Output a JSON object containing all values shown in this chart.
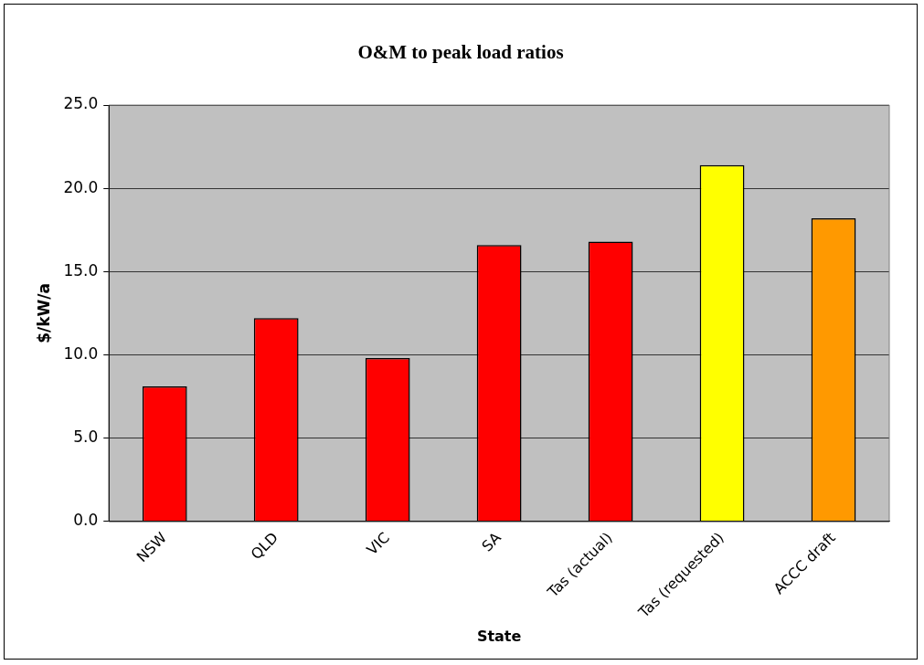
{
  "chart_data": {
    "type": "bar",
    "title": "O&M to peak load ratios",
    "xlabel": "State",
    "ylabel": "$/kW/a",
    "categories": [
      "NSW",
      "QLD",
      "VIC",
      "SA",
      "Tas (actual)",
      "Tas (requested)",
      "ACCC draft"
    ],
    "values": [
      8.1,
      12.2,
      9.8,
      16.6,
      16.8,
      21.4,
      18.2
    ],
    "colors": [
      "#ff0000",
      "#ff0000",
      "#ff0000",
      "#ff0000",
      "#ff0000",
      "#ffff00",
      "#ff9900"
    ],
    "ylim": [
      0,
      25
    ],
    "yticks": [
      {
        "value": 0,
        "label": "0.0"
      },
      {
        "value": 5,
        "label": "5.0"
      },
      {
        "value": 10,
        "label": "10.0"
      },
      {
        "value": 15,
        "label": "15.0"
      },
      {
        "value": 20,
        "label": "20.0"
      },
      {
        "value": 25,
        "label": "25.0"
      }
    ],
    "grid": "y",
    "legend": false
  }
}
